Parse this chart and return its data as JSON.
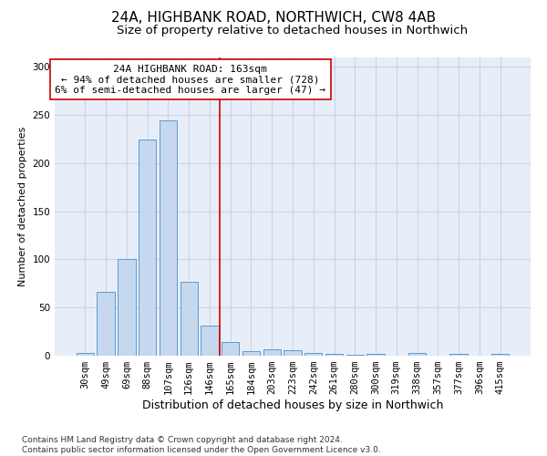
{
  "title": "24A, HIGHBANK ROAD, NORTHWICH, CW8 4AB",
  "subtitle": "Size of property relative to detached houses in Northwich",
  "xlabel": "Distribution of detached houses by size in Northwich",
  "ylabel": "Number of detached properties",
  "categories": [
    "30sqm",
    "49sqm",
    "69sqm",
    "88sqm",
    "107sqm",
    "126sqm",
    "146sqm",
    "165sqm",
    "184sqm",
    "203sqm",
    "223sqm",
    "242sqm",
    "261sqm",
    "280sqm",
    "300sqm",
    "319sqm",
    "338sqm",
    "357sqm",
    "377sqm",
    "396sqm",
    "415sqm"
  ],
  "values": [
    3,
    66,
    100,
    224,
    244,
    77,
    31,
    14,
    5,
    7,
    6,
    3,
    2,
    1,
    2,
    0,
    3,
    0,
    2,
    0,
    2
  ],
  "bar_color": "#c5d8ed",
  "bar_edge_color": "#5b9bd5",
  "vline_color": "#cc0000",
  "annotation_text": "24A HIGHBANK ROAD: 163sqm\n← 94% of detached houses are smaller (728)\n6% of semi-detached houses are larger (47) →",
  "annotation_box_color": "#ffffff",
  "annotation_box_edge": "#cc0000",
  "ylim": [
    0,
    310
  ],
  "yticks": [
    0,
    50,
    100,
    150,
    200,
    250,
    300
  ],
  "grid_color": "#c8d4e8",
  "bg_color": "#e8eef8",
  "footer": "Contains HM Land Registry data © Crown copyright and database right 2024.\nContains public sector information licensed under the Open Government Licence v3.0.",
  "title_fontsize": 11,
  "subtitle_fontsize": 9.5,
  "xlabel_fontsize": 9,
  "ylabel_fontsize": 8,
  "tick_fontsize": 7.5,
  "annotation_fontsize": 8,
  "footer_fontsize": 6.5
}
